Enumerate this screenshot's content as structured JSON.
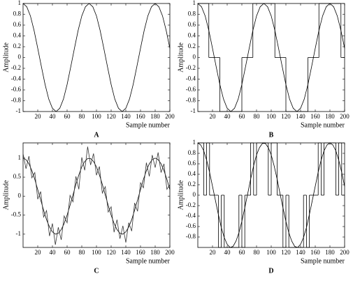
{
  "chart_data": [
    {
      "type": "line",
      "label": "A",
      "xlabel": "Sample number",
      "ylabel": "Amplitude",
      "xlim": [
        0,
        200
      ],
      "ylim": [
        -1,
        1
      ],
      "xticks": [
        20,
        40,
        60,
        80,
        100,
        120,
        140,
        160,
        180,
        200
      ],
      "yticks": [
        -1,
        -0.8,
        -0.6,
        -0.4,
        -0.2,
        0,
        0.2,
        0.4,
        0.6,
        0.8,
        1
      ],
      "x": [
        0,
        5,
        10,
        15,
        20,
        25,
        30,
        35,
        40,
        45,
        50,
        55,
        60,
        65,
        70,
        75,
        80,
        85,
        90,
        95,
        100,
        105,
        110,
        115,
        120,
        125,
        130,
        135,
        140,
        145,
        150,
        155,
        160,
        165,
        170,
        175,
        180,
        185,
        190,
        195,
        200
      ],
      "series": [
        {
          "color": "#000000",
          "values": [
            1,
            0.94,
            0.77,
            0.5,
            0.17,
            -0.17,
            -0.5,
            -0.77,
            -0.94,
            -1,
            -0.94,
            -0.77,
            -0.5,
            -0.17,
            0.17,
            0.5,
            0.77,
            0.94,
            1,
            0.94,
            0.77,
            0.5,
            0.17,
            -0.17,
            -0.5,
            -0.77,
            -0.94,
            -1,
            -0.94,
            -0.77,
            -0.5,
            -0.17,
            0.17,
            0.5,
            0.77,
            0.94,
            1,
            0.94,
            0.77,
            0.5,
            0.17
          ]
        }
      ]
    },
    {
      "type": "line",
      "label": "B",
      "xlabel": "Sample number",
      "ylabel": "Amplitude",
      "xlim": [
        0,
        200
      ],
      "ylim": [
        -1,
        1
      ],
      "xticks": [
        20,
        40,
        60,
        80,
        100,
        120,
        140,
        160,
        180,
        200
      ],
      "yticks": [
        -1,
        -0.8,
        -0.6,
        -0.4,
        -0.2,
        0,
        0.2,
        0.4,
        0.6,
        0.8,
        1
      ],
      "x": [
        0,
        5,
        10,
        15,
        20,
        25,
        30,
        35,
        40,
        45,
        50,
        55,
        60,
        65,
        70,
        75,
        80,
        85,
        90,
        95,
        100,
        105,
        110,
        115,
        120,
        125,
        130,
        135,
        140,
        145,
        150,
        155,
        160,
        165,
        170,
        175,
        180,
        185,
        190,
        195,
        200
      ],
      "series": [
        {
          "color": "#000000",
          "values": [
            1,
            0.94,
            0.77,
            0.5,
            0.17,
            -0.17,
            -0.5,
            -0.77,
            -0.94,
            -1,
            -0.94,
            -0.77,
            -0.5,
            -0.17,
            0.17,
            0.5,
            0.77,
            0.94,
            1,
            0.94,
            0.77,
            0.5,
            0.17,
            -0.17,
            -0.5,
            -0.77,
            -0.94,
            -1,
            -0.94,
            -0.77,
            -0.5,
            -0.17,
            0.17,
            0.5,
            0.77,
            0.94,
            1,
            0.94,
            0.77,
            0.5,
            0.17
          ]
        },
        {
          "color": "#000000",
          "step": true,
          "values": [
            1,
            1,
            1,
            0,
            0,
            0,
            -1,
            -1,
            -1,
            -1,
            -1,
            -1,
            0,
            0,
            0,
            1,
            1,
            1,
            1,
            1,
            1,
            0,
            0,
            0,
            -1,
            -1,
            -1,
            -1,
            -1,
            -1,
            0,
            0,
            0,
            1,
            1,
            1,
            1,
            1,
            1,
            0,
            0
          ]
        }
      ]
    },
    {
      "type": "line",
      "label": "C",
      "xlabel": "Sample number",
      "ylabel": "Amplitude",
      "xlim": [
        0,
        200
      ],
      "ylim": [
        -1.35,
        1.4
      ],
      "xticks": [
        20,
        40,
        60,
        80,
        100,
        120,
        140,
        160,
        180,
        200
      ],
      "yticks": [
        -1,
        -0.5,
        0,
        0.5,
        1
      ],
      "x": [
        0,
        4,
        8,
        12,
        16,
        20,
        24,
        28,
        32,
        36,
        40,
        44,
        48,
        52,
        56,
        60,
        64,
        68,
        72,
        76,
        80,
        84,
        88,
        92,
        96,
        100,
        104,
        108,
        112,
        116,
        120,
        124,
        128,
        132,
        136,
        140,
        144,
        148,
        152,
        156,
        160,
        164,
        168,
        172,
        176,
        180,
        184,
        188,
        192,
        196,
        200
      ],
      "series": [
        {
          "color": "#000000",
          "values": [
            1,
            0.96,
            0.85,
            0.67,
            0.44,
            0.17,
            -0.1,
            -0.37,
            -0.62,
            -0.81,
            -0.94,
            -1,
            -0.98,
            -0.88,
            -0.72,
            -0.5,
            -0.24,
            0.03,
            0.31,
            0.56,
            0.77,
            0.91,
            0.99,
            0.99,
            0.91,
            0.77,
            0.56,
            0.31,
            0.03,
            -0.24,
            -0.5,
            -0.72,
            -0.88,
            -0.98,
            -1,
            -0.94,
            -0.81,
            -0.62,
            -0.37,
            -0.1,
            0.17,
            0.44,
            0.67,
            0.85,
            0.96,
            1,
            0.96,
            0.85,
            0.67,
            0.44,
            0.17
          ]
        },
        {
          "color": "#333333",
          "values": [
            1.12,
            0.72,
            1.05,
            0.48,
            0.62,
            -0.08,
            0.12,
            -0.55,
            -0.38,
            -1.05,
            -0.72,
            -1.28,
            -0.82,
            -1.15,
            -0.52,
            -0.7,
            0.02,
            -0.15,
            0.52,
            0.18,
            1.02,
            0.68,
            1.3,
            0.82,
            1.12,
            0.55,
            0.78,
            0.08,
            0.25,
            -0.42,
            -0.28,
            -0.95,
            -0.62,
            -1.12,
            -0.78,
            -1.22,
            -0.7,
            -0.92,
            -0.18,
            -0.4,
            0.35,
            0.22,
            0.88,
            0.52,
            1.08,
            0.75,
            1.15,
            0.62,
            0.85,
            0.18,
            0.3
          ]
        }
      ]
    },
    {
      "type": "line",
      "label": "D",
      "xlabel": "Sample number",
      "ylabel": "Amplitude",
      "xlim": [
        0,
        200
      ],
      "ylim": [
        -1,
        1
      ],
      "xticks": [
        20,
        40,
        60,
        80,
        100,
        120,
        140,
        160,
        180,
        200
      ],
      "yticks": [
        -0.8,
        -0.6,
        -0.4,
        -0.2,
        0,
        0.2,
        0.4,
        0.6,
        0.8,
        1
      ],
      "x": [
        0,
        4,
        8,
        12,
        16,
        20,
        24,
        28,
        32,
        36,
        40,
        44,
        48,
        52,
        56,
        60,
        64,
        68,
        72,
        76,
        80,
        84,
        88,
        92,
        96,
        100,
        104,
        108,
        112,
        116,
        120,
        124,
        128,
        132,
        136,
        140,
        144,
        148,
        152,
        156,
        160,
        164,
        168,
        172,
        176,
        180,
        184,
        188,
        192,
        196,
        200
      ],
      "series": [
        {
          "color": "#000000",
          "values": [
            1,
            0.96,
            0.85,
            0.67,
            0.44,
            0.17,
            -0.1,
            -0.37,
            -0.62,
            -0.81,
            -0.94,
            -1,
            -0.98,
            -0.88,
            -0.72,
            -0.5,
            -0.24,
            0.03,
            0.31,
            0.56,
            0.77,
            0.91,
            0.99,
            0.99,
            0.91,
            0.77,
            0.56,
            0.31,
            0.03,
            -0.24,
            -0.5,
            -0.72,
            -0.88,
            -0.98,
            -1,
            -0.94,
            -0.81,
            -0.62,
            -0.37,
            -0.1,
            0.17,
            0.44,
            0.67,
            0.85,
            0.96,
            1,
            0.96,
            0.85,
            0.67,
            0.44,
            0.17
          ]
        },
        {
          "color": "#000000",
          "step": true,
          "values": [
            1,
            1,
            0,
            1,
            0,
            0,
            0,
            -1,
            0,
            -1,
            -1,
            -1,
            -1,
            -1,
            0,
            -1,
            0,
            0,
            1,
            0,
            1,
            1,
            1,
            1,
            0,
            1,
            1,
            0,
            0,
            -1,
            0,
            -1,
            -1,
            -1,
            -1,
            -1,
            0,
            -1,
            0,
            0,
            0,
            1,
            0,
            1,
            1,
            1,
            1,
            0,
            1,
            0,
            0
          ]
        }
      ]
    }
  ]
}
